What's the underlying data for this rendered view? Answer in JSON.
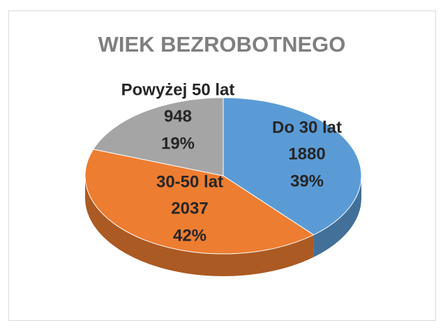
{
  "chart_data": {
    "type": "pie",
    "title": "WIEK BEZROBOTNEGO",
    "categories": [
      "Do 30 lat",
      "30-50 lat",
      "Powyżej 50 lat"
    ],
    "values": [
      1880,
      2037,
      948
    ],
    "percentages": [
      39,
      42,
      19
    ],
    "percentage_labels": [
      "39%",
      "42%",
      "19%"
    ],
    "colors": [
      "#5b9bd5",
      "#ed7d31",
      "#a5a5a5"
    ]
  }
}
